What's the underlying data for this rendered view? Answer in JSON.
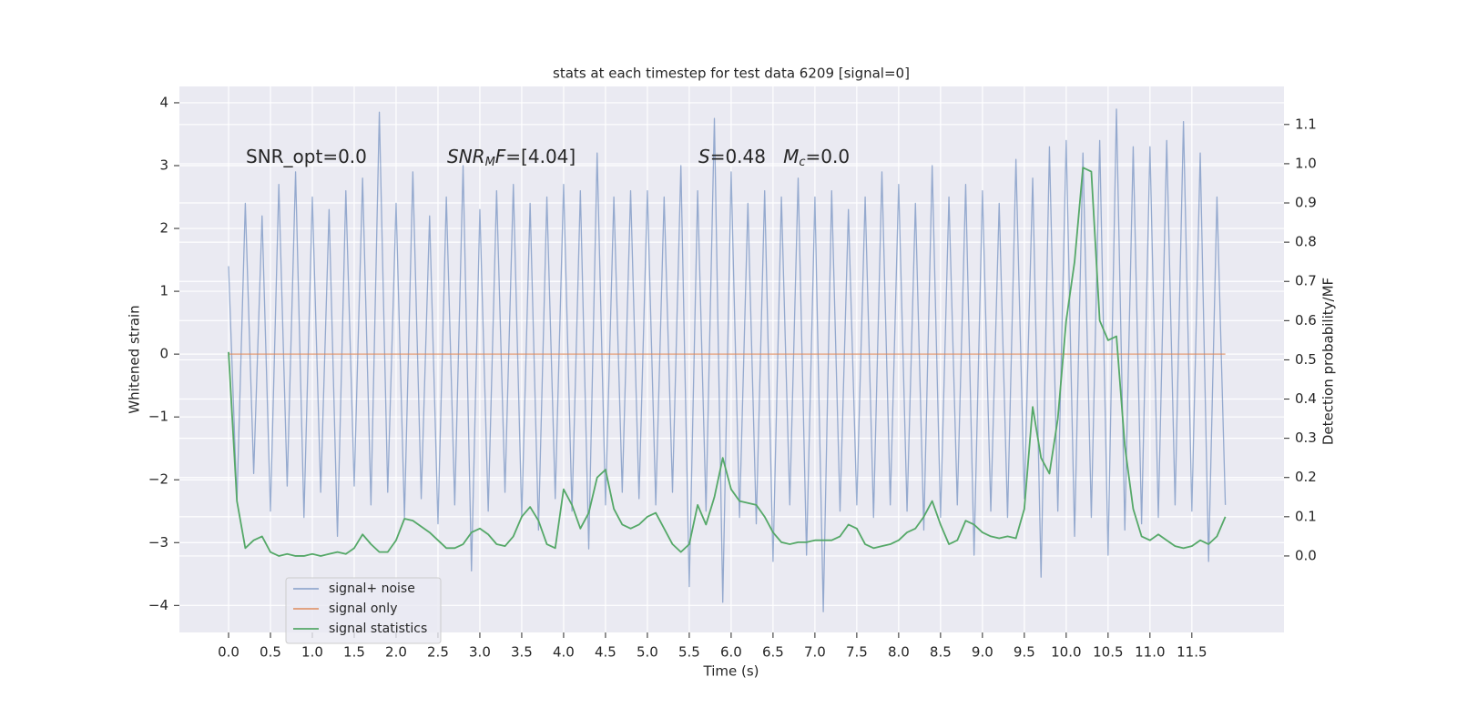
{
  "chart_data": {
    "type": "line",
    "title": "stats at each timestep for test data 6209 [signal=0]",
    "xlabel": "Time (s)",
    "ylabel": "Whitened strain",
    "y2label": "Detection probability/MF",
    "annotations": [
      [
        {
          "text": "SNR_opt=0.0"
        }
      ],
      [
        {
          "text": "SNR",
          "italic": true
        },
        {
          "text": "M",
          "italic": true,
          "sub": true
        },
        {
          "text": "F",
          "italic": true
        },
        {
          "text": "=[4.04]"
        }
      ],
      [
        {
          "text": "S",
          "italic": true
        },
        {
          "text": "=0.48   "
        },
        {
          "text": "M",
          "italic": true
        },
        {
          "text": "c",
          "italic": true,
          "sub": true
        },
        {
          "text": "=0.0"
        }
      ]
    ],
    "x": [
      0,
      0.1,
      0.2,
      0.3,
      0.4,
      0.5,
      0.6,
      0.7,
      0.8,
      0.9,
      1,
      1.1,
      1.2,
      1.3,
      1.4,
      1.5,
      1.6,
      1.7,
      1.8,
      1.9,
      2,
      2.1,
      2.2,
      2.3,
      2.4,
      2.5,
      2.6,
      2.7,
      2.8,
      2.9,
      3,
      3.1,
      3.2,
      3.3,
      3.4,
      3.5,
      3.6,
      3.7,
      3.8,
      3.9,
      4,
      4.1,
      4.2,
      4.3,
      4.4,
      4.5,
      4.6,
      4.7,
      4.8,
      4.9,
      5,
      5.1,
      5.2,
      5.3,
      5.4,
      5.5,
      5.6,
      5.7,
      5.8,
      5.9,
      6,
      6.1,
      6.2,
      6.3,
      6.4,
      6.5,
      6.6,
      6.7,
      6.8,
      6.9,
      7,
      7.1,
      7.2,
      7.3,
      7.4,
      7.5,
      7.6,
      7.7,
      7.8,
      7.9,
      8,
      8.1,
      8.2,
      8.3,
      8.4,
      8.5,
      8.6,
      8.7,
      8.8,
      8.9,
      9,
      9.1,
      9.2,
      9.3,
      9.4,
      9.5,
      9.6,
      9.7,
      9.8,
      9.9,
      10,
      10.1,
      10.2,
      10.3,
      10.4,
      10.5,
      10.6,
      10.7,
      10.8,
      10.9,
      11,
      11.1,
      11.2,
      11.3,
      11.4,
      11.5,
      11.6,
      11.7,
      11.8,
      11.9
    ],
    "series": [
      {
        "name": "signal+ noise",
        "color": "#4c72b0",
        "opacity": 0.55,
        "values": [
          1.4,
          -2.35,
          2.4,
          -1.9,
          2.2,
          -2.5,
          2.7,
          -2.1,
          2.9,
          -2.6,
          2.5,
          -2.2,
          2.3,
          -2.9,
          2.6,
          -2.1,
          2.8,
          -2.4,
          3.85,
          -2.2,
          2.4,
          -2.6,
          2.9,
          -2.3,
          2.2,
          -2.7,
          2.5,
          -2.4,
          3.0,
          -3.45,
          2.3,
          -2.5,
          2.6,
          -2.2,
          2.7,
          -2.6,
          2.4,
          -2.8,
          2.5,
          -2.3,
          2.7,
          -2.5,
          2.6,
          -3.1,
          3.2,
          -2.4,
          2.5,
          -2.2,
          2.6,
          -2.3,
          2.6,
          -2.4,
          2.5,
          -2.2,
          3.0,
          -3.7,
          2.6,
          -2.5,
          3.75,
          -3.95,
          2.9,
          -2.6,
          2.4,
          -2.7,
          2.6,
          -3.3,
          2.5,
          -2.4,
          2.8,
          -3.2,
          2.5,
          -4.1,
          2.6,
          -2.5,
          2.3,
          -2.4,
          2.5,
          -2.6,
          2.9,
          -2.4,
          2.7,
          -2.5,
          2.4,
          -2.8,
          3.0,
          -2.6,
          2.5,
          -2.4,
          2.7,
          -3.2,
          2.6,
          -2.5,
          2.4,
          -2.6,
          3.1,
          -2.3,
          2.8,
          -3.55,
          3.3,
          -2.5,
          3.4,
          -2.9,
          3.2,
          -2.6,
          3.4,
          -3.2,
          3.9,
          -2.8,
          3.3,
          -2.7,
          3.3,
          -2.6,
          3.4,
          -2.4,
          3.7,
          -2.5,
          3.2,
          -3.3,
          2.5,
          -2.4
        ]
      },
      {
        "name": "signal only",
        "color": "#dd8452",
        "opacity": 0.8,
        "values": [
          0,
          0,
          0,
          0,
          0,
          0,
          0,
          0,
          0,
          0,
          0,
          0,
          0,
          0,
          0,
          0,
          0,
          0,
          0,
          0,
          0,
          0,
          0,
          0,
          0,
          0,
          0,
          0,
          0,
          0,
          0,
          0,
          0,
          0,
          0,
          0,
          0,
          0,
          0,
          0,
          0,
          0,
          0,
          0,
          0,
          0,
          0,
          0,
          0,
          0,
          0,
          0,
          0,
          0,
          0,
          0,
          0,
          0,
          0,
          0,
          0,
          0,
          0,
          0,
          0,
          0,
          0,
          0,
          0,
          0,
          0,
          0,
          0,
          0,
          0,
          0,
          0,
          0,
          0,
          0,
          0,
          0,
          0,
          0,
          0,
          0,
          0,
          0,
          0,
          0,
          0,
          0,
          0,
          0,
          0,
          0,
          0,
          0,
          0,
          0,
          0,
          0,
          0,
          0,
          0,
          0,
          0,
          0,
          0,
          0,
          0,
          0,
          0,
          0,
          0,
          0,
          0,
          0,
          0,
          0
        ]
      },
      {
        "name": "signal statistics",
        "color": "#55a868",
        "opacity": 1,
        "axis": "y2",
        "values": [
          0.52,
          0.14,
          0.02,
          0.04,
          0.05,
          0.01,
          0.0,
          0.005,
          0.0,
          0.0,
          0.005,
          0.0,
          0.005,
          0.01,
          0.005,
          0.02,
          0.055,
          0.03,
          0.01,
          0.01,
          0.04,
          0.095,
          0.09,
          0.075,
          0.06,
          0.04,
          0.02,
          0.02,
          0.03,
          0.06,
          0.07,
          0.055,
          0.03,
          0.025,
          0.05,
          0.1,
          0.125,
          0.09,
          0.03,
          0.02,
          0.17,
          0.13,
          0.07,
          0.11,
          0.2,
          0.22,
          0.12,
          0.08,
          0.07,
          0.08,
          0.1,
          0.11,
          0.07,
          0.03,
          0.01,
          0.03,
          0.13,
          0.08,
          0.15,
          0.25,
          0.17,
          0.14,
          0.135,
          0.13,
          0.1,
          0.06,
          0.035,
          0.03,
          0.035,
          0.035,
          0.04,
          0.04,
          0.04,
          0.05,
          0.08,
          0.07,
          0.03,
          0.02,
          0.025,
          0.03,
          0.04,
          0.06,
          0.07,
          0.1,
          0.14,
          0.08,
          0.03,
          0.04,
          0.09,
          0.08,
          0.06,
          0.05,
          0.045,
          0.05,
          0.045,
          0.12,
          0.38,
          0.25,
          0.21,
          0.35,
          0.6,
          0.75,
          0.99,
          0.98,
          0.6,
          0.55,
          0.56,
          0.28,
          0.12,
          0.05,
          0.04,
          0.055,
          0.04,
          0.025,
          0.02,
          0.025,
          0.04,
          0.03,
          0.05,
          0.1
        ]
      }
    ],
    "xlim": [
      -0.587,
      12.6
    ],
    "xticks": [
      {
        "value": 0,
        "label": "0.0"
      },
      0.5,
      {
        "value": 1,
        "label": "1.0"
      },
      1.5,
      {
        "value": 2,
        "label": "2.0"
      },
      2.5,
      {
        "value": 3,
        "label": "3.0"
      },
      3.5,
      {
        "value": 4,
        "label": "4.0"
      },
      4.5,
      {
        "value": 5,
        "label": "5.0"
      },
      5.5,
      {
        "value": 6,
        "label": "6.0"
      },
      6.5,
      {
        "value": 7,
        "label": "7.0"
      },
      7.5,
      {
        "value": 8,
        "label": "8.0"
      },
      8.5,
      {
        "value": 9,
        "label": "9.0"
      },
      9.5,
      {
        "value": 10,
        "label": "10.0"
      },
      10.5,
      {
        "value": 11,
        "label": "11.0"
      },
      11.5
    ],
    "ylim": [
      -4.43,
      4.26
    ],
    "yticks": [
      {
        "value": -4,
        "label": "−4"
      },
      {
        "value": -3,
        "label": "−3"
      },
      {
        "value": -2,
        "label": "−2"
      },
      {
        "value": -1,
        "label": "−1"
      },
      0,
      1,
      2,
      3,
      4
    ],
    "y2lim": [
      -0.195,
      1.197
    ],
    "y2ticks": [
      {
        "value": 0,
        "label": "0.0"
      },
      0.1,
      0.2,
      0.3,
      0.4,
      0.5,
      0.6,
      0.7,
      0.8,
      0.9,
      {
        "value": 1,
        "label": "1.0"
      },
      1.1
    ],
    "grid": true,
    "legend": "lower left"
  }
}
